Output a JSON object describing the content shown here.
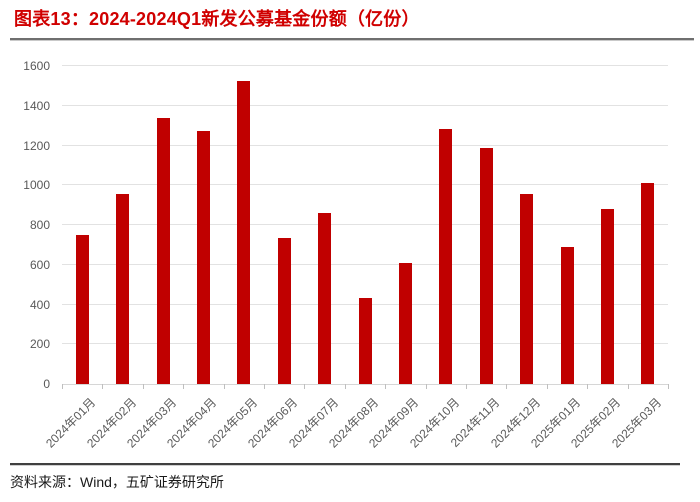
{
  "title": "图表13：2024-2024Q1新发公募基金份额（亿份）",
  "source": "资料来源：Wind，五矿证券研究所",
  "colors": {
    "title": "#D00000",
    "bar": "#C00000",
    "grid": "#E2E2E2",
    "baseline": "#D6D6D6",
    "axis_text": "#595959",
    "tick": "#BFBFBF",
    "title_rule": "#6F6F6F",
    "footer_rule": "#404040",
    "source_text": "#1A1A1A"
  },
  "chart_data": {
    "type": "bar",
    "title": "图表13：2024-2024Q1新发公募基金份额（亿份）",
    "categories": [
      "2024年01月",
      "2024年02月",
      "2024年03月",
      "2024年04月",
      "2024年05月",
      "2024年06月",
      "2024年07月",
      "2024年08月",
      "2024年09月",
      "2024年10月",
      "2024年11月",
      "2024年12月",
      "2025年01月",
      "2025年02月",
      "2025年03月"
    ],
    "values": [
      750,
      955,
      1340,
      1275,
      1525,
      735,
      860,
      435,
      610,
      1285,
      1185,
      955,
      690,
      880,
      1010
    ],
    "xlabel": "",
    "ylabel": "",
    "ylim": [
      0,
      1600
    ],
    "ytick_interval": 200,
    "yticks": [
      0,
      200,
      400,
      600,
      800,
      1000,
      1200,
      1400,
      1600
    ],
    "grid": true,
    "legend": "none",
    "bar_color": "#C00000"
  }
}
